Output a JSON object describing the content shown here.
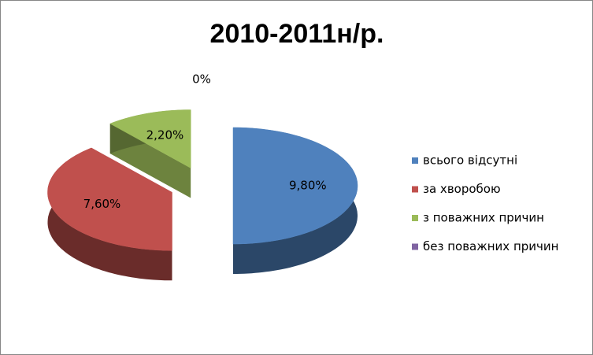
{
  "chart_data": {
    "type": "pie",
    "title": "2010-2011н/р.",
    "three_d": true,
    "exploded": true,
    "categories": [
      "всього відсутні",
      "за хворобою",
      "з поважних причин",
      "без поважних причин"
    ],
    "values": [
      9.8,
      7.6,
      2.2,
      0
    ],
    "value_labels": [
      "9,80%",
      "7,60%",
      "2,20%",
      "0%"
    ],
    "colors": [
      "#4f81bd",
      "#c0504d",
      "#9bbb59",
      "#8064a2"
    ],
    "legend": "right"
  }
}
